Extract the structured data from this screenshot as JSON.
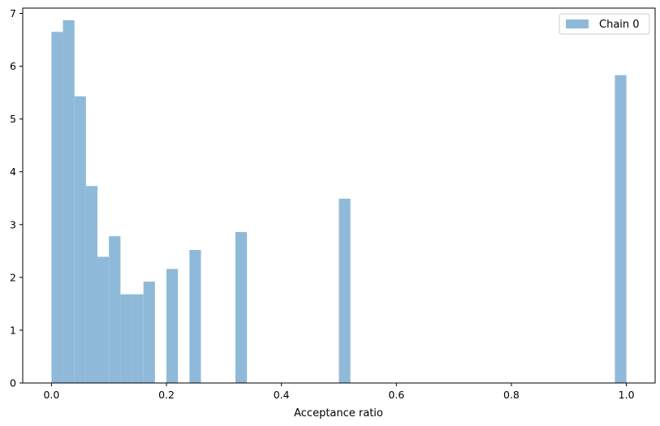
{
  "chart_data": {
    "type": "bar",
    "xlabel": "Acceptance ratio",
    "ylabel": "",
    "title": "",
    "xlim": [
      -0.05,
      1.05
    ],
    "ylim": [
      0,
      7.1
    ],
    "grid": false,
    "legend_position": "top-right",
    "bin_width": 0.02,
    "xticks": [
      0.0,
      0.2,
      0.4,
      0.6,
      0.8,
      1.0
    ],
    "xtick_labels": [
      "0.0",
      "0.2",
      "0.4",
      "0.6",
      "0.8",
      "1.0"
    ],
    "yticks": [
      0,
      1,
      2,
      3,
      4,
      5,
      6,
      7
    ],
    "ytick_labels": [
      "0",
      "1",
      "2",
      "3",
      "4",
      "5",
      "6",
      "7"
    ],
    "series": [
      {
        "name": "Chain 0",
        "color": "#8fb9d8",
        "bins": [
          {
            "x0": 0.0,
            "value": 6.65
          },
          {
            "x0": 0.02,
            "value": 6.87
          },
          {
            "x0": 0.04,
            "value": 5.43
          },
          {
            "x0": 0.06,
            "value": 3.73
          },
          {
            "x0": 0.08,
            "value": 2.39
          },
          {
            "x0": 0.1,
            "value": 2.78
          },
          {
            "x0": 0.12,
            "value": 1.68
          },
          {
            "x0": 0.14,
            "value": 1.68
          },
          {
            "x0": 0.16,
            "value": 1.92
          },
          {
            "x0": 0.2,
            "value": 2.16
          },
          {
            "x0": 0.24,
            "value": 2.52
          },
          {
            "x0": 0.32,
            "value": 2.86
          },
          {
            "x0": 0.5,
            "value": 3.49
          },
          {
            "x0": 0.98,
            "value": 5.83
          }
        ]
      }
    ]
  }
}
